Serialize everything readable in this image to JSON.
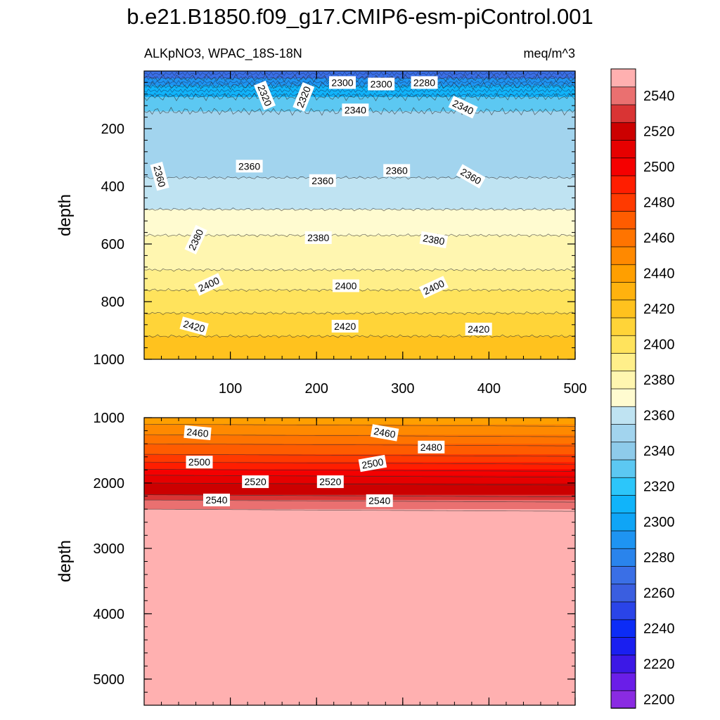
{
  "chart_data": {
    "type": "contour",
    "title": "b.e21.B1850.f09_g17.CMIP6-esm-piControl.001",
    "variable_label": "ALKpNO3, WPAC_18S-18N",
    "units_label": "meq/m^3",
    "ylabel": "depth",
    "x_range": [
      0,
      500
    ],
    "x_ticks": [
      100,
      200,
      300,
      400,
      500
    ],
    "panels": [
      {
        "name": "upper",
        "y_range": [
          0,
          1000
        ],
        "y_ticks": [
          200,
          400,
          600,
          800,
          1000
        ],
        "bands": [
          {
            "depth": 0,
            "value": 2270
          },
          {
            "depth": 25,
            "value": 2290
          },
          {
            "depth": 50,
            "value": 2310
          },
          {
            "depth": 90,
            "value": 2330
          },
          {
            "depth": 140,
            "value": 2350
          },
          {
            "depth": 370,
            "value": 2365
          },
          {
            "depth": 480,
            "value": 2375
          },
          {
            "depth": 570,
            "value": 2385
          },
          {
            "depth": 690,
            "value": 2395
          },
          {
            "depth": 760,
            "value": 2405
          },
          {
            "depth": 840,
            "value": 2415
          },
          {
            "depth": 920,
            "value": 2425
          }
        ],
        "contour_labels": [
          {
            "x": 230,
            "depth": 40,
            "text": "2300"
          },
          {
            "x": 275,
            "depth": 45,
            "text": "2300"
          },
          {
            "x": 325,
            "depth": 40,
            "text": "2280"
          },
          {
            "x": 140,
            "depth": 85,
            "text": "2320",
            "angle": 68
          },
          {
            "x": 185,
            "depth": 90,
            "text": "2320",
            "angle": -68
          },
          {
            "x": 245,
            "depth": 135,
            "text": "2340"
          },
          {
            "x": 370,
            "depth": 125,
            "text": "2340",
            "angle": 25
          },
          {
            "x": 18,
            "depth": 365,
            "text": "2360",
            "angle": 75
          },
          {
            "x": 122,
            "depth": 330,
            "text": "2360"
          },
          {
            "x": 207,
            "depth": 380,
            "text": "2360"
          },
          {
            "x": 293,
            "depth": 345,
            "text": "2360"
          },
          {
            "x": 379,
            "depth": 365,
            "text": "2360",
            "angle": 30
          },
          {
            "x": 60,
            "depth": 585,
            "text": "2380",
            "angle": -65
          },
          {
            "x": 202,
            "depth": 578,
            "text": "2380"
          },
          {
            "x": 336,
            "depth": 585,
            "text": "2380",
            "angle": 10
          },
          {
            "x": 75,
            "depth": 740,
            "text": "2400",
            "angle": -25
          },
          {
            "x": 234,
            "depth": 745,
            "text": "2400"
          },
          {
            "x": 336,
            "depth": 750,
            "text": "2400",
            "angle": -25
          },
          {
            "x": 58,
            "depth": 885,
            "text": "2420",
            "angle": 15
          },
          {
            "x": 233,
            "depth": 885,
            "text": "2420"
          },
          {
            "x": 388,
            "depth": 895,
            "text": "2420"
          }
        ]
      },
      {
        "name": "lower",
        "y_range": [
          1000,
          5400
        ],
        "y_ticks": [
          1000,
          2000,
          3000,
          4000,
          5000
        ],
        "bands": [
          {
            "depth": 1000,
            "value": 2445
          },
          {
            "depth": 1100,
            "value": 2455
          },
          {
            "depth": 1260,
            "value": 2465
          },
          {
            "depth": 1400,
            "value": 2475
          },
          {
            "depth": 1560,
            "value": 2485
          },
          {
            "depth": 1680,
            "value": 2495
          },
          {
            "depth": 1790,
            "value": 2505
          },
          {
            "depth": 1880,
            "value": 2515
          },
          {
            "depth": 2000,
            "value": 2525
          },
          {
            "depth": 2180,
            "value": 2535
          },
          {
            "depth": 2260,
            "value": 2545
          },
          {
            "depth": 2400,
            "value": 2555
          }
        ],
        "contour_labels": [
          {
            "x": 62,
            "depth": 1230,
            "text": "2460",
            "angle": 5
          },
          {
            "x": 279,
            "depth": 1230,
            "text": "2460",
            "angle": 10
          },
          {
            "x": 333,
            "depth": 1450,
            "text": "2480"
          },
          {
            "x": 64,
            "depth": 1680,
            "text": "2500"
          },
          {
            "x": 265,
            "depth": 1700,
            "text": "2500",
            "angle": -10
          },
          {
            "x": 129,
            "depth": 1980,
            "text": "2520"
          },
          {
            "x": 216,
            "depth": 1980,
            "text": "2520"
          },
          {
            "x": 84,
            "depth": 2260,
            "text": "2540"
          },
          {
            "x": 273,
            "depth": 2270,
            "text": "2540"
          }
        ]
      }
    ],
    "colorbar": {
      "levels": [
        2200,
        2210,
        2220,
        2230,
        2240,
        2250,
        2260,
        2270,
        2280,
        2290,
        2300,
        2310,
        2320,
        2330,
        2340,
        2350,
        2360,
        2370,
        2380,
        2390,
        2400,
        2410,
        2420,
        2430,
        2440,
        2450,
        2460,
        2470,
        2480,
        2490,
        2500,
        2510,
        2520,
        2530,
        2540,
        2550
      ],
      "colors": [
        "#8a2be2",
        "#6a1ee8",
        "#3c18e6",
        "#1a1ff0",
        "#0c2cf6",
        "#2a44e8",
        "#3a5ee0",
        "#3a6fe6",
        "#2a84ec",
        "#1e94f2",
        "#0fa5f6",
        "#10b4fa",
        "#2cc6fa",
        "#5cc8f2",
        "#8ecbea",
        "#a2d4ee",
        "#bfe3f2",
        "#fffbd0",
        "#fff6b0",
        "#ffef8a",
        "#ffe35c",
        "#ffd438",
        "#ffc21e",
        "#ffb20e",
        "#ff9f00",
        "#ff8900",
        "#ff7400",
        "#ff5c00",
        "#ff3a00",
        "#ff1e00",
        "#f50000",
        "#e60000",
        "#cc0000",
        "#d93434",
        "#ea7070",
        "#ffb0b0"
      ],
      "tick_labels": [
        "2200",
        "2220",
        "2240",
        "2260",
        "2280",
        "2300",
        "2320",
        "2340",
        "2360",
        "2380",
        "2400",
        "2420",
        "2440",
        "2460",
        "2480",
        "2500",
        "2520",
        "2540"
      ]
    }
  }
}
